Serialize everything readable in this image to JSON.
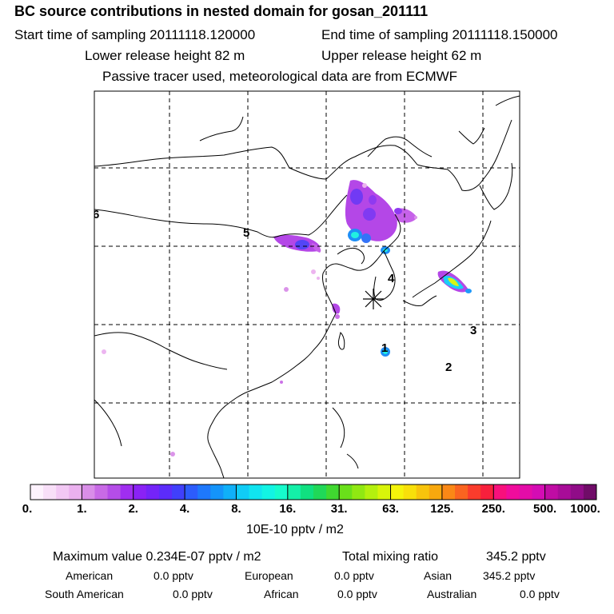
{
  "header": {
    "title": "BC  source contributions in nested domain for gosan_201111",
    "start_time": "Start time of sampling 20111118.120000",
    "end_time": "End time of sampling 20111118.150000",
    "lower_release": "Lower release height   82 m",
    "upper_release": "Upper release height   62 m",
    "tracer_note": "Passive tracer used, meteorological data are from ECMWF"
  },
  "map": {
    "region_labels": [
      "1",
      "2",
      "3",
      "4",
      "5",
      "6"
    ],
    "receptor_marker": "gosan-receptor-star",
    "colors": {
      "coast": "#000000",
      "grid": "#000000"
    }
  },
  "colorbar": {
    "tick_labels": [
      "0.",
      "1.",
      "2.",
      "4.",
      "8.",
      "16.",
      "31.",
      "63.",
      "125.",
      "250.",
      "500.",
      "1000."
    ],
    "colors": [
      [
        "#fdf2fd",
        "#f8dff8",
        "#f2c8f4",
        "#ebb1ef"
      ],
      [
        "#d98ee8",
        "#c86ae6",
        "#b54de8",
        "#a02ef0"
      ],
      [
        "#8a22f5",
        "#7424f8",
        "#5c2cfa",
        "#4040fb"
      ],
      [
        "#2c5cfc",
        "#1e78fc",
        "#1494fa",
        "#10b0f8"
      ],
      [
        "#10ccf6",
        "#10e4f0",
        "#12f4e4",
        "#16fccc"
      ],
      [
        "#14f0a8",
        "#10e080",
        "#20d858",
        "#40d830"
      ],
      [
        "#6ae01a",
        "#90e812",
        "#b4f00e",
        "#d8f40a"
      ],
      [
        "#f4f40a",
        "#f8e00a",
        "#f8c40c",
        "#f8a80e"
      ],
      [
        "#fa8816",
        "#fa6420",
        "#fa3c2c",
        "#f8203c"
      ],
      [
        "#f8107c",
        "#f00c9c",
        "#e40ca8",
        "#d40cb4"
      ],
      [
        "#c00ca4",
        "#a80c98",
        "#900c88",
        "#700c68"
      ]
    ],
    "units": "10E-10 pptv / m2"
  },
  "stats": {
    "max_value": "Maximum value  0.234E-07 pptv / m2",
    "total_mixing": "Total mixing ratio",
    "total_mixing_value": "345.2 pptv",
    "american_label": "American",
    "american_value": "0.0 pptv",
    "european_label": "European",
    "european_value": "0.0 pptv",
    "asian_label": "Asian",
    "asian_value": "345.2 pptv",
    "south_american_label": "South American",
    "south_american_value": "0.0 pptv",
    "african_label": "African",
    "african_value": "0.0 pptv",
    "australian_label": "Australian",
    "australian_value": "0.0 pptv"
  }
}
